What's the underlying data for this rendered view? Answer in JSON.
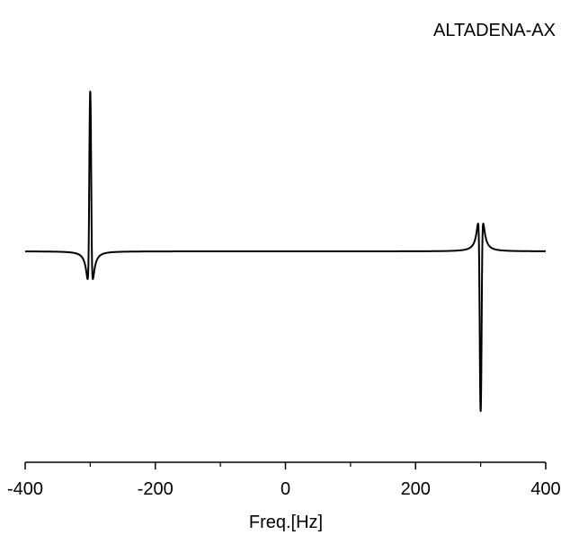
{
  "chart_data": {
    "type": "line",
    "title": "ALTADENA-AX",
    "xlabel": "Freq.[Hz]",
    "ylabel": "",
    "xlim": [
      -400,
      400
    ],
    "ylim": [
      -1.0,
      1.0
    ],
    "x_major_ticks": [
      -400,
      -200,
      0,
      200,
      400
    ],
    "x_tick_labels": [
      "-400",
      "-200",
      "0",
      "200",
      "400"
    ],
    "x_minor_ticks": [
      -300,
      -100,
      100,
      300
    ],
    "show_y_axis": false,
    "grid": false,
    "legend": "none",
    "line_color": "#000000",
    "series": [
      {
        "peaks": [
          {
            "center": -300,
            "amplitude": 1.0,
            "shape": "antiphase-dispersive",
            "sign": 1
          },
          {
            "center": 300,
            "amplitude": 1.0,
            "shape": "antiphase-dispersive",
            "sign": -1
          }
        ]
      }
    ]
  }
}
